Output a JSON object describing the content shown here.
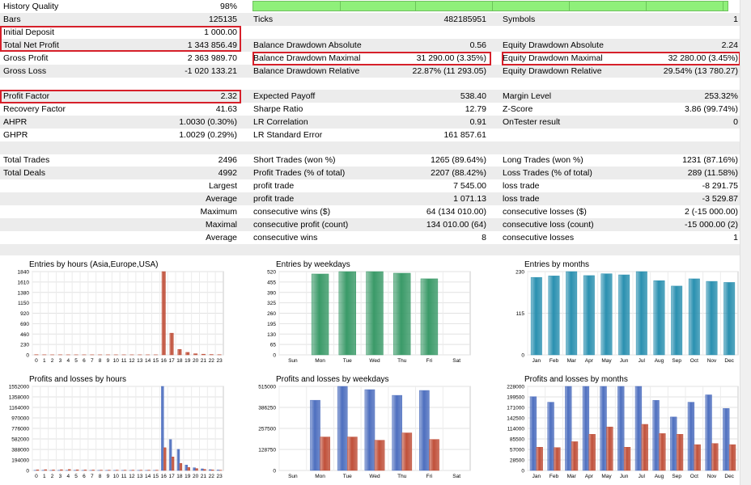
{
  "stats": {
    "history_quality": {
      "label": "History Quality",
      "value": "98%",
      "fraction": 0.98
    },
    "bars": {
      "label": "Bars",
      "value": "125135"
    },
    "ticks": {
      "label": "Ticks",
      "value": "482185951"
    },
    "symbols": {
      "label": "Symbols",
      "value": "1"
    },
    "initial_deposit": {
      "label": "Initial Deposit",
      "value": "1 000.00"
    },
    "total_net_profit": {
      "label": "Total Net Profit",
      "value": "1 343 856.49"
    },
    "balance_dd_abs": {
      "label": "Balance Drawdown Absolute",
      "value": "0.56"
    },
    "equity_dd_abs": {
      "label": "Equity Drawdown Absolute",
      "value": "2.24"
    },
    "gross_profit": {
      "label": "Gross Profit",
      "value": "2 363 989.70"
    },
    "balance_dd_max": {
      "label": "Balance Drawdown Maximal",
      "value": "31 290.00 (3.35%)"
    },
    "equity_dd_max": {
      "label": "Equity Drawdown Maximal",
      "value": "32 280.00 (3.45%)"
    },
    "gross_loss": {
      "label": "Gross Loss",
      "value": "-1 020 133.21"
    },
    "balance_dd_rel": {
      "label": "Balance Drawdown Relative",
      "value": "22.87% (11 293.05)"
    },
    "equity_dd_rel": {
      "label": "Equity Drawdown Relative",
      "value": "29.54% (13 780.27)"
    },
    "profit_factor": {
      "label": "Profit Factor",
      "value": "2.32"
    },
    "expected_payoff": {
      "label": "Expected Payoff",
      "value": "538.40"
    },
    "margin_level": {
      "label": "Margin Level",
      "value": "253.32%"
    },
    "recovery_factor": {
      "label": "Recovery Factor",
      "value": "41.63"
    },
    "sharpe_ratio": {
      "label": "Sharpe Ratio",
      "value": "12.79"
    },
    "z_score": {
      "label": "Z-Score",
      "value": "3.86 (99.74%)"
    },
    "ahpr": {
      "label": "AHPR",
      "value": "1.0030 (0.30%)"
    },
    "lr_correlation": {
      "label": "LR Correlation",
      "value": "0.91"
    },
    "ontester_result": {
      "label": "OnTester result",
      "value": "0"
    },
    "ghpr": {
      "label": "GHPR",
      "value": "1.0029 (0.29%)"
    },
    "lr_std_error": {
      "label": "LR Standard Error",
      "value": "161 857.61"
    },
    "total_trades": {
      "label": "Total Trades",
      "value": "2496"
    },
    "short_trades": {
      "label": "Short Trades (won %)",
      "value": "1265 (89.64%)"
    },
    "long_trades": {
      "label": "Long Trades (won %)",
      "value": "1231 (87.16%)"
    },
    "total_deals": {
      "label": "Total Deals",
      "value": "4992"
    },
    "profit_trades": {
      "label": "Profit Trades (% of total)",
      "value": "2207 (88.42%)"
    },
    "loss_trades": {
      "label": "Loss Trades (% of total)",
      "value": "289 (11.58%)"
    },
    "largest": {
      "label": "Largest",
      "profit_label": "profit trade",
      "profit_value": "7 545.00",
      "loss_label": "loss trade",
      "loss_value": "-8 291.75"
    },
    "average": {
      "label": "Average",
      "profit_label": "profit trade",
      "profit_value": "1 071.13",
      "loss_label": "loss trade",
      "loss_value": "-3 529.87"
    },
    "maximum": {
      "label": "Maximum",
      "profit_label": "consecutive wins ($)",
      "profit_value": "64 (134 010.00)",
      "loss_label": "consecutive losses ($)",
      "loss_value": "2 (-15 000.00)"
    },
    "maximal": {
      "label": "Maximal",
      "profit_label": "consecutive profit (count)",
      "profit_value": "134 010.00 (64)",
      "loss_label": "consecutive loss (count)",
      "loss_value": "-15 000.00 (2)"
    },
    "average_consec": {
      "label": "Average",
      "profit_label": "consecutive wins",
      "profit_value": "8",
      "loss_label": "consecutive losses",
      "loss_value": "1"
    }
  },
  "chart_data": [
    {
      "id": "entries_hours",
      "type": "bar",
      "title": "Entries by hours (Asia,Europe,USA)",
      "categories": [
        "0",
        "1",
        "2",
        "3",
        "4",
        "5",
        "6",
        "7",
        "8",
        "9",
        "10",
        "11",
        "12",
        "13",
        "14",
        "15",
        "16",
        "17",
        "18",
        "19",
        "20",
        "21",
        "22",
        "23"
      ],
      "series": [
        {
          "name": "Entries",
          "color": "#c0503a",
          "values": [
            5,
            3,
            2,
            3,
            2,
            2,
            2,
            2,
            2,
            2,
            2,
            2,
            2,
            2,
            2,
            2,
            1840,
            480,
            120,
            55,
            25,
            15,
            8,
            5
          ]
        }
      ],
      "yticks": [
        "0",
        "230",
        "460",
        "690",
        "920",
        "1150",
        "1380",
        "1610",
        "1840"
      ],
      "ylim": [
        0,
        1840
      ]
    },
    {
      "id": "entries_weekdays",
      "type": "bar",
      "title": "Entries by weekdays",
      "categories": [
        "Sun",
        "Mon",
        "Tue",
        "Wed",
        "Thu",
        "Fri",
        "Sat"
      ],
      "series": [
        {
          "name": "Entries",
          "color": "#3a9a68",
          "values": [
            0,
            505,
            525,
            520,
            510,
            475,
            0
          ]
        }
      ],
      "yticks": [
        "0",
        "65",
        "130",
        "195",
        "260",
        "325",
        "390",
        "455",
        "520"
      ],
      "ylim": [
        0,
        520
      ]
    },
    {
      "id": "entries_months",
      "type": "bar",
      "title": "Entries by months",
      "categories": [
        "Jan",
        "Feb",
        "Mar",
        "Apr",
        "May",
        "Jun",
        "Jul",
        "Aug",
        "Sep",
        "Oct",
        "Nov",
        "Dec"
      ],
      "series": [
        {
          "name": "Entries",
          "color": "#2a90b0",
          "values": [
            214,
            218,
            231,
            219,
            224,
            221,
            232,
            205,
            190,
            210,
            203,
            200
          ]
        }
      ],
      "yticks": [
        "0",
        "115",
        "230"
      ],
      "ylim": [
        0,
        230
      ]
    },
    {
      "id": "pl_hours",
      "type": "bar",
      "title": "Profits and losses by hours",
      "categories": [
        "0",
        "1",
        "2",
        "3",
        "4",
        "5",
        "6",
        "7",
        "8",
        "9",
        "10",
        "11",
        "12",
        "13",
        "14",
        "15",
        "16",
        "17",
        "18",
        "19",
        "20",
        "21",
        "22",
        "23"
      ],
      "series": [
        {
          "name": "Profit",
          "color": "#4e6fbf",
          "values": [
            3000,
            4000,
            2000,
            3000,
            2000,
            3000,
            2000,
            2000,
            2000,
            2000,
            2000,
            2000,
            2000,
            2000,
            2000,
            2000,
            1552000,
            570000,
            390000,
            100000,
            50000,
            30000,
            15000,
            8000
          ]
        },
        {
          "name": "Loss",
          "color": "#c0503a",
          "values": [
            12000,
            15000,
            10000,
            14000,
            18000,
            12000,
            10000,
            8000,
            6000,
            6000,
            6000,
            6000,
            6000,
            6000,
            6000,
            6000,
            420000,
            250000,
            130000,
            55000,
            35000,
            20000,
            10000,
            5000
          ]
        }
      ],
      "yticks": [
        "0",
        "194000",
        "388000",
        "582000",
        "776000",
        "970000",
        "1164000",
        "1358000",
        "1552000"
      ],
      "ylim": [
        0,
        1552000
      ]
    },
    {
      "id": "pl_weekdays",
      "type": "bar",
      "title": "Profits and losses by weekdays",
      "categories": [
        "Sun",
        "Mon",
        "Tue",
        "Wed",
        "Thu",
        "Fri",
        "Sat"
      ],
      "series": [
        {
          "name": "Profit",
          "color": "#4e6fbf",
          "values": [
            0,
            430000,
            515000,
            495000,
            460000,
            490000,
            0
          ]
        },
        {
          "name": "Loss",
          "color": "#c0503a",
          "values": [
            0,
            205000,
            205000,
            185000,
            230000,
            190000,
            0
          ]
        }
      ],
      "yticks": [
        "0",
        "128750",
        "257500",
        "386250",
        "515000"
      ],
      "ylim": [
        0,
        515000
      ]
    },
    {
      "id": "pl_months",
      "type": "bar",
      "title": "Profits and losses by months",
      "categories": [
        "Jan",
        "Feb",
        "Mar",
        "Apr",
        "May",
        "Jun",
        "Jul",
        "Aug",
        "Sep",
        "Oct",
        "Nov",
        "Dec"
      ],
      "series": [
        {
          "name": "Profit",
          "color": "#4e6fbf",
          "values": [
            200000,
            185000,
            228000,
            228000,
            228000,
            228000,
            228000,
            190000,
            145000,
            185000,
            205000,
            168000
          ]
        },
        {
          "name": "Loss",
          "color": "#c0503a",
          "values": [
            63000,
            62000,
            78000,
            98000,
            118000,
            63000,
            125000,
            100000,
            98000,
            70000,
            73000,
            70000
          ]
        }
      ],
      "yticks": [
        "0",
        "28500",
        "57000",
        "85500",
        "114000",
        "142500",
        "171000",
        "199500",
        "228000"
      ],
      "ylim": [
        0,
        228000
      ]
    }
  ]
}
